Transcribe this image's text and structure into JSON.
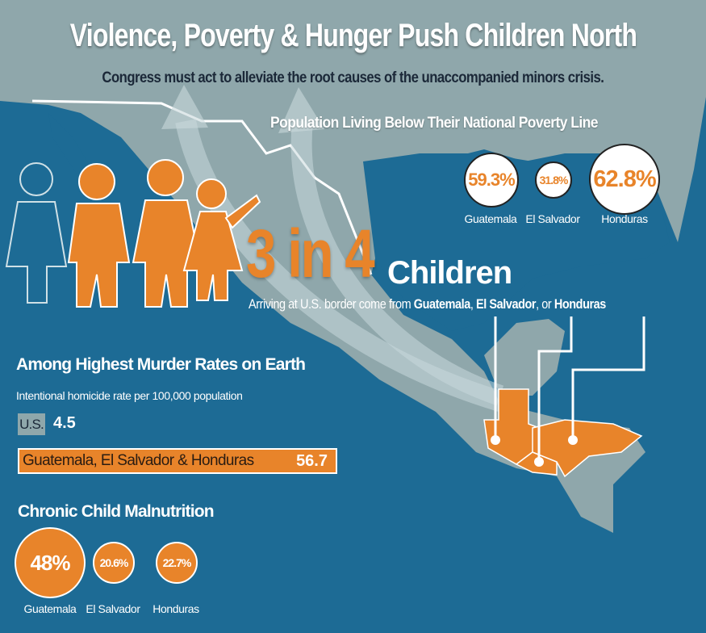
{
  "title": "Violence, Poverty & Hunger Push Children North",
  "subtitle": "Congress must act to alleviate the root causes of the unaccompanied minors crisis.",
  "colors": {
    "background": "#1d6b95",
    "land": "#8fa7ab",
    "accent": "#e8842a"
  },
  "poverty": {
    "heading": "Population Living Below Their National Poverty Line",
    "items": [
      {
        "country": "Guatemala",
        "value": "59.3%"
      },
      {
        "country": "El Salvador",
        "value": "31.8%"
      },
      {
        "country": "Honduras",
        "value": "62.8%"
      }
    ]
  },
  "children": {
    "ratio": "3 in 4",
    "label": "Children",
    "arriving_prefix": "Arriving at U.S. border come from ",
    "c1": "Guatemala",
    "sep1": ", ",
    "c2": "El Salvador",
    "sep2": ", or ",
    "c3": "Honduras"
  },
  "murder": {
    "heading": "Among Highest Murder Rates on Earth",
    "subheading": "Intentional homicide rate per 100,000 population",
    "us_label": "U.S.",
    "us_value": "4.5",
    "region_label": "Guatemala, El Salvador & Honduras",
    "region_value": "56.7"
  },
  "malnutrition": {
    "heading": "Chronic Child Malnutrition",
    "items": [
      {
        "country": "Guatemala",
        "value": "48%"
      },
      {
        "country": "El Salvador",
        "value": "20.6%"
      },
      {
        "country": "Honduras",
        "value": "22.7%"
      }
    ]
  }
}
